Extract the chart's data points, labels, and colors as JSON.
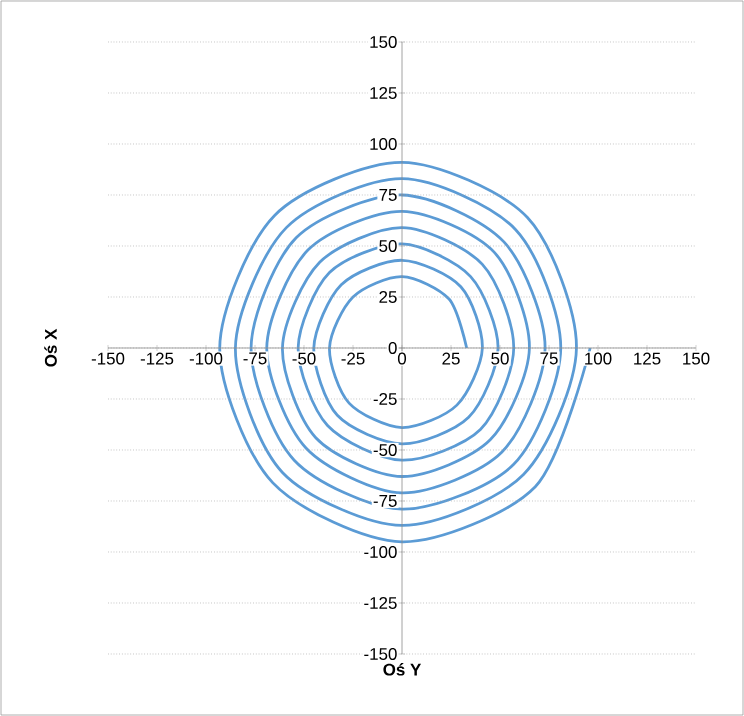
{
  "chart_data": {
    "type": "line",
    "xlabel": "Oś Y",
    "ylabel": "Oś X",
    "xlim": [
      -150,
      150
    ],
    "ylim": [
      -150,
      150
    ],
    "xticks": [
      -150,
      -125,
      -100,
      -75,
      -50,
      -25,
      0,
      25,
      50,
      75,
      100,
      125,
      150
    ],
    "yticks": [
      -150,
      -125,
      -100,
      -75,
      -50,
      -25,
      0,
      25,
      50,
      75,
      100,
      125,
      150
    ],
    "grid": "y",
    "marker": "none",
    "line_style": "solid",
    "series": [
      {
        "color": "#5b9bd5",
        "x": [
          33,
          24,
          0,
          -25,
          -37,
          -27,
          0,
          28,
          41,
          30,
          0,
          -31,
          -45,
          -33,
          0,
          34,
          49,
          35,
          0,
          -37,
          -53,
          -38,
          0,
          40,
          57,
          41,
          0,
          -42,
          -61,
          -44,
          0,
          45,
          65,
          47,
          0,
          -48,
          -69,
          -49,
          0,
          51,
          73,
          52,
          0,
          -54,
          -77,
          -55,
          0,
          57,
          81,
          58,
          0,
          -59,
          -85,
          -61,
          0,
          62,
          89,
          64,
          0,
          -65,
          -93,
          -66,
          0,
          68,
          96
        ],
        "values": [
          0,
          24,
          35,
          25,
          0,
          -27,
          -39,
          -28,
          0,
          30,
          43,
          31,
          0,
          -33,
          -47,
          -34,
          0,
          35,
          51,
          37,
          0,
          -38,
          -55,
          -40,
          0,
          41,
          59,
          42,
          0,
          -44,
          -63,
          -45,
          0,
          47,
          67,
          48,
          0,
          -49,
          -71,
          -51,
          0,
          52,
          75,
          54,
          0,
          -55,
          -79,
          -57,
          0,
          58,
          83,
          59,
          0,
          -61,
          -87,
          -62,
          0,
          64,
          91,
          65,
          0,
          -66,
          -95,
          -68,
          0
        ]
      }
    ]
  }
}
